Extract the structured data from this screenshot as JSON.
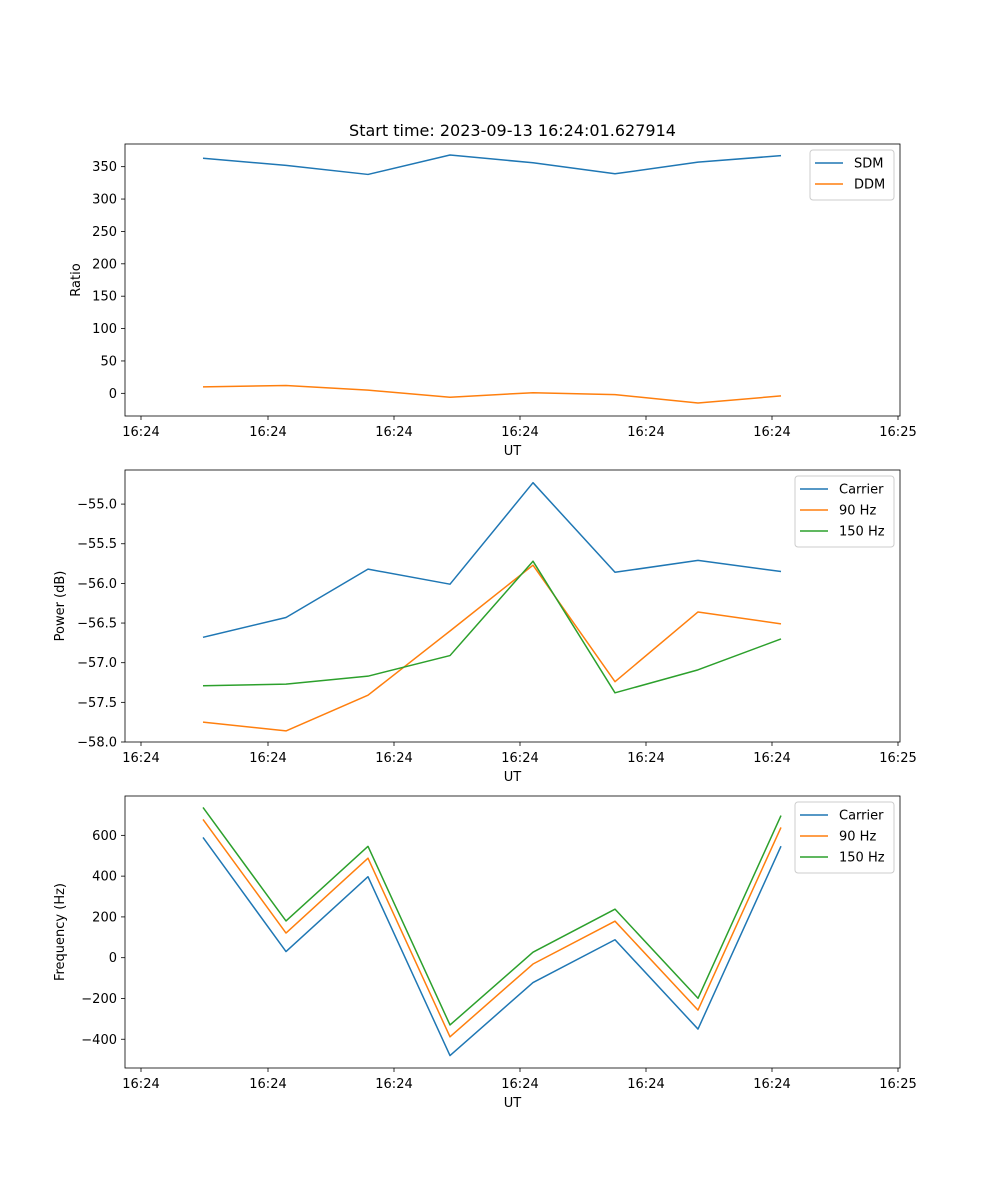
{
  "chart_data": [
    {
      "type": "line",
      "title": "Start time: 2023-09-13 16:24:01.627914",
      "xlabel": "UT",
      "ylabel": "Ratio",
      "x_tick_labels": [
        "16:24",
        "16:24",
        "16:24",
        "16:24",
        "16:24",
        "16:24",
        "16:25"
      ],
      "yticks": [
        0,
        50,
        100,
        150,
        200,
        250,
        300,
        350
      ],
      "ylim": [
        -35,
        385
      ],
      "legend_position": "top-right",
      "series": [
        {
          "name": "SDM",
          "color": "#1f77b4",
          "values": [
            363,
            352,
            338,
            368,
            356,
            339,
            357,
            367
          ]
        },
        {
          "name": "DDM",
          "color": "#ff7f0e",
          "values": [
            10,
            12,
            5,
            -6,
            1,
            -2,
            -15,
            -4
          ]
        }
      ]
    },
    {
      "type": "line",
      "title": "",
      "xlabel": "UT",
      "ylabel": "Power (dB)",
      "x_tick_labels": [
        "16:24",
        "16:24",
        "16:24",
        "16:24",
        "16:24",
        "16:24",
        "16:25"
      ],
      "yticks": [
        -58.0,
        -57.5,
        -57.0,
        -56.5,
        -56.0,
        -55.5,
        -55.0
      ],
      "ytick_labels": [
        "−58.0",
        "−57.5",
        "−57.0",
        "−56.5",
        "−56.0",
        "−55.5",
        "−55.0"
      ],
      "ylim": [
        -58.0,
        -54.57
      ],
      "legend_position": "top-right",
      "series": [
        {
          "name": "Carrier",
          "color": "#1f77b4",
          "values": [
            -56.68,
            -56.43,
            -55.82,
            -56.01,
            -54.73,
            -55.86,
            -55.71,
            -55.85
          ]
        },
        {
          "name": "90 Hz",
          "color": "#ff7f0e",
          "values": [
            -57.75,
            -57.86,
            -57.41,
            -56.6,
            -55.77,
            -57.24,
            -56.36,
            -56.51
          ]
        },
        {
          "name": "150 Hz",
          "color": "#2ca02c",
          "values": [
            -57.29,
            -57.27,
            -57.17,
            -56.91,
            -55.72,
            -57.38,
            -57.09,
            -56.7
          ]
        }
      ]
    },
    {
      "type": "line",
      "title": "",
      "xlabel": "UT",
      "ylabel": "Frequency (Hz)",
      "x_tick_labels": [
        "16:24",
        "16:24",
        "16:24",
        "16:24",
        "16:24",
        "16:24",
        "16:25"
      ],
      "yticks": [
        -400,
        -200,
        0,
        200,
        400,
        600
      ],
      "ytick_labels": [
        "−400",
        "−200",
        "0",
        "200",
        "400",
        "600"
      ],
      "ylim": [
        -541,
        793
      ],
      "legend_position": "top-right",
      "series": [
        {
          "name": "Carrier",
          "color": "#1f77b4",
          "values": [
            590,
            30,
            397,
            -480,
            -122,
            88,
            -350,
            547
          ]
        },
        {
          "name": "90 Hz",
          "color": "#ff7f0e",
          "values": [
            678,
            121,
            488,
            -388,
            -31,
            179,
            -257,
            639
          ]
        },
        {
          "name": "150 Hz",
          "color": "#2ca02c",
          "values": [
            737,
            180,
            546,
            -330,
            27,
            238,
            -199,
            697
          ]
        }
      ]
    }
  ]
}
